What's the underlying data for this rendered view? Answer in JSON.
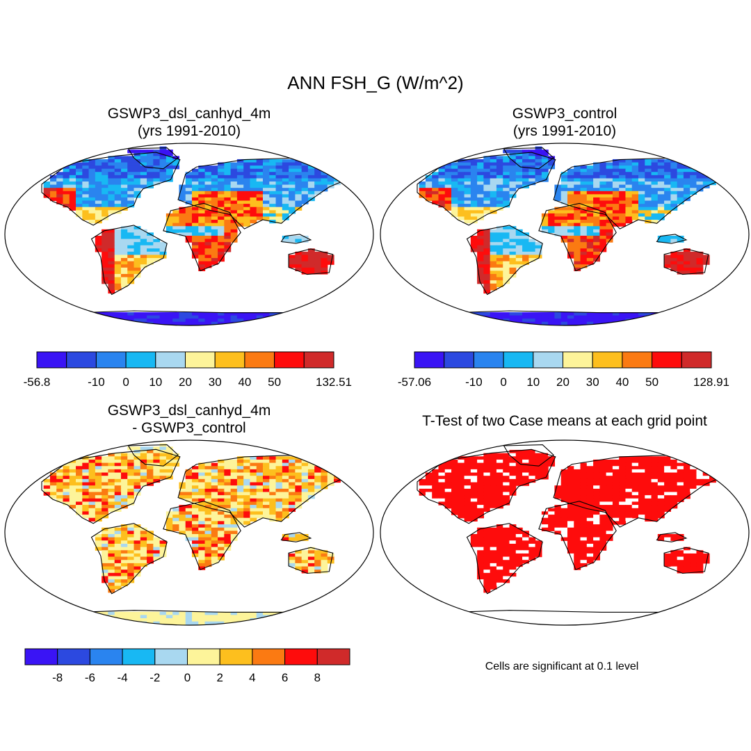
{
  "main_title": "ANN FSH_G (W/m^2)",
  "panels": [
    {
      "id": "case1",
      "title_line1": "GSWP3_dsl_canhyd_4m",
      "title_line2": "(yrs 1991-2010)",
      "kind": "field"
    },
    {
      "id": "case2",
      "title_line1": "GSWP3_control",
      "title_line2": "(yrs 1991-2010)",
      "kind": "field"
    },
    {
      "id": "diff",
      "title_line1": "GSWP3_dsl_canhyd_4m",
      "title_line2": "- GSWP3_control",
      "kind": "diff"
    },
    {
      "id": "ttest",
      "title_line1": "T-Test of two Case means at each grid point",
      "title_line2": "",
      "kind": "ttest"
    }
  ],
  "colorbars": [
    {
      "id": "cb1",
      "colors": [
        "#3a14f5",
        "#2c49e0",
        "#2a84ef",
        "#18b8f3",
        "#a9d8f0",
        "#fdf49a",
        "#fdbf1e",
        "#fb7a12",
        "#fe0c0c",
        "#d02a2a"
      ],
      "labels": [
        "-56.8",
        "-10",
        "0",
        "10",
        "20",
        "30",
        "40",
        "50",
        "132.51"
      ],
      "label_slots": [
        0,
        2,
        3,
        4,
        5,
        6,
        7,
        8,
        10
      ]
    },
    {
      "id": "cb2",
      "colors": [
        "#3a14f5",
        "#2c49e0",
        "#2a84ef",
        "#18b8f3",
        "#a9d8f0",
        "#fdf49a",
        "#fdbf1e",
        "#fb7a12",
        "#fe0c0c",
        "#d02a2a"
      ],
      "labels": [
        "-57.06",
        "-10",
        "0",
        "10",
        "20",
        "30",
        "40",
        "50",
        "128.91"
      ],
      "label_slots": [
        0,
        2,
        3,
        4,
        5,
        6,
        7,
        8,
        10
      ]
    },
    {
      "id": "cb3",
      "colors": [
        "#3a14f5",
        "#2c49e0",
        "#2a84ef",
        "#18b8f3",
        "#a9d8f0",
        "#fdf49a",
        "#fdbf1e",
        "#fb7a12",
        "#fe0c0c",
        "#d02a2a"
      ],
      "labels": [
        "-8",
        "-6",
        "-4",
        "-2",
        "0",
        "2",
        "4",
        "6",
        "8"
      ],
      "label_slots": [
        1,
        2,
        3,
        4,
        5,
        6,
        7,
        8,
        9
      ]
    }
  ],
  "significance_note": "Cells are significant at 0.1 level",
  "colors": {
    "ocean": "#ffffff",
    "coast": "#000000",
    "significant": "#fe0c0c"
  }
}
